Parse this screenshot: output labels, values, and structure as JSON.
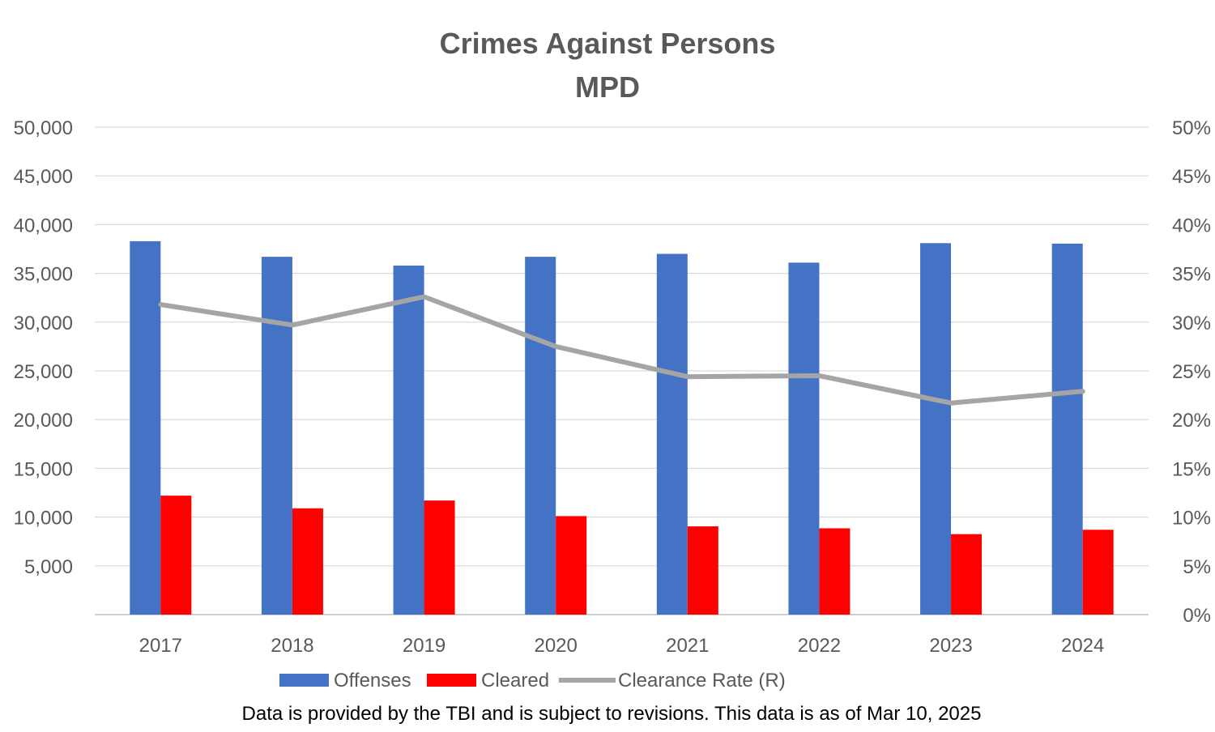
{
  "chart_data": {
    "type": "bar",
    "title": "Crimes Against Persons",
    "subtitle": "MPD",
    "categories": [
      "2017",
      "2018",
      "2019",
      "2020",
      "2021",
      "2022",
      "2023",
      "2024"
    ],
    "series": [
      {
        "name": "Offenses",
        "kind": "bar",
        "axis": "left",
        "color": "#4472C4",
        "values": [
          38300,
          36700,
          35800,
          36700,
          37000,
          36100,
          38100,
          38050
        ]
      },
      {
        "name": "Cleared",
        "kind": "bar",
        "axis": "left",
        "color": "#FF0000",
        "values": [
          12200,
          10900,
          11700,
          10100,
          9050,
          8850,
          8250,
          8700
        ]
      },
      {
        "name": "Clearance Rate (R)",
        "kind": "line",
        "axis": "right",
        "color": "#A5A5A5",
        "values": [
          31.8,
          29.7,
          32.6,
          27.5,
          24.4,
          24.5,
          21.7,
          22.9
        ]
      }
    ],
    "y_left": {
      "min": 0,
      "max": 50000,
      "step": 5000,
      "ticks": [
        "",
        "5,000",
        "10,000",
        "15,000",
        "20,000",
        "25,000",
        "30,000",
        "35,000",
        "40,000",
        "45,000",
        "50,000"
      ]
    },
    "y_right": {
      "min": 0,
      "max": 50,
      "step": 5,
      "ticks": [
        "0%",
        "5%",
        "10%",
        "15%",
        "20%",
        "25%",
        "30%",
        "35%",
        "40%",
        "45%",
        "50%"
      ]
    },
    "grid": true,
    "legend_position": "bottom",
    "footnote": "Data is provided by the TBI and is subject to revisions.  This data is as of Mar 10, 2025"
  }
}
